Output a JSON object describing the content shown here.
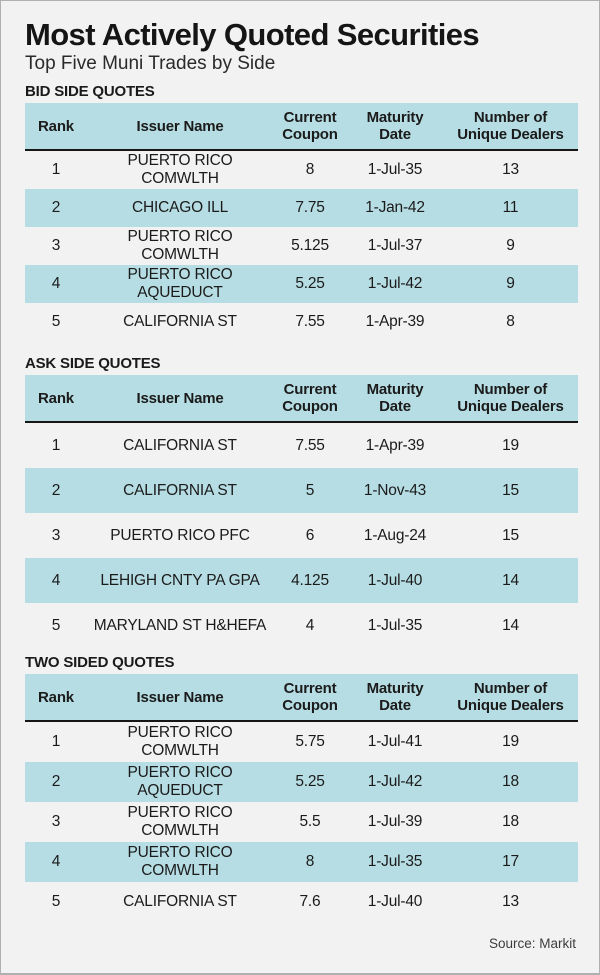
{
  "header": {
    "title": "Most Actively Quoted Securities",
    "subtitle": "Top Five Muni Trades by Side"
  },
  "colors": {
    "accent_cyan": "#b6dde3",
    "background": "#f2f2f3",
    "header_rule": "#161616",
    "page_border": "#b0b0b3"
  },
  "chart_data": [
    {
      "type": "table",
      "title": "BID SIDE QUOTES",
      "columns": [
        "Rank",
        "Issuer Name",
        "Current\nCoupon",
        "Maturity\nDate",
        "Number of\nUnique Dealers"
      ],
      "rows": [
        [
          "1",
          "PUERTO RICO COMWLTH",
          "8",
          "1-Jul-35",
          "13"
        ],
        [
          "2",
          "CHICAGO ILL",
          "7.75",
          "1-Jan-42",
          "11"
        ],
        [
          "3",
          "PUERTO RICO COMWLTH",
          "5.125",
          "1-Jul-37",
          "9"
        ],
        [
          "4",
          "PUERTO RICO AQUEDUCT",
          "5.25",
          "1-Jul-42",
          "9"
        ],
        [
          "5",
          "CALIFORNIA ST",
          "7.55",
          "1-Apr-39",
          "8"
        ]
      ]
    },
    {
      "type": "table",
      "title": "ASK SIDE QUOTES",
      "columns": [
        "Rank",
        "Issuer Name",
        "Current\nCoupon",
        "Maturity\nDate",
        "Number of\nUnique Dealers"
      ],
      "rows": [
        [
          "1",
          "CALIFORNIA ST",
          "7.55",
          "1-Apr-39",
          "19"
        ],
        [
          "2",
          "CALIFORNIA ST",
          "5",
          "1-Nov-43",
          "15"
        ],
        [
          "3",
          "PUERTO RICO PFC",
          "6",
          "1-Aug-24",
          "15"
        ],
        [
          "4",
          "LEHIGH CNTY PA GPA",
          "4.125",
          "1-Jul-40",
          "14"
        ],
        [
          "5",
          "MARYLAND ST H&HEFA",
          "4",
          "1-Jul-35",
          "14"
        ]
      ]
    },
    {
      "type": "table",
      "title": "TWO SIDED QUOTES",
      "columns": [
        "Rank",
        "Issuer Name",
        "Current\nCoupon",
        "Maturity\nDate",
        "Number of\nUnique Dealers"
      ],
      "rows": [
        [
          "1",
          "PUERTO RICO COMWLTH",
          "5.75",
          "1-Jul-41",
          "19"
        ],
        [
          "2",
          "PUERTO RICO AQUEDUCT",
          "5.25",
          "1-Jul-42",
          "18"
        ],
        [
          "3",
          "PUERTO RICO COMWLTH",
          "5.5",
          "1-Jul-39",
          "18"
        ],
        [
          "4",
          "PUERTO RICO COMWLTH",
          "8",
          "1-Jul-35",
          "17"
        ],
        [
          "5",
          "CALIFORNIA ST",
          "7.6",
          "1-Jul-40",
          "13"
        ]
      ]
    }
  ],
  "footer": {
    "source": "Source: Markit"
  }
}
